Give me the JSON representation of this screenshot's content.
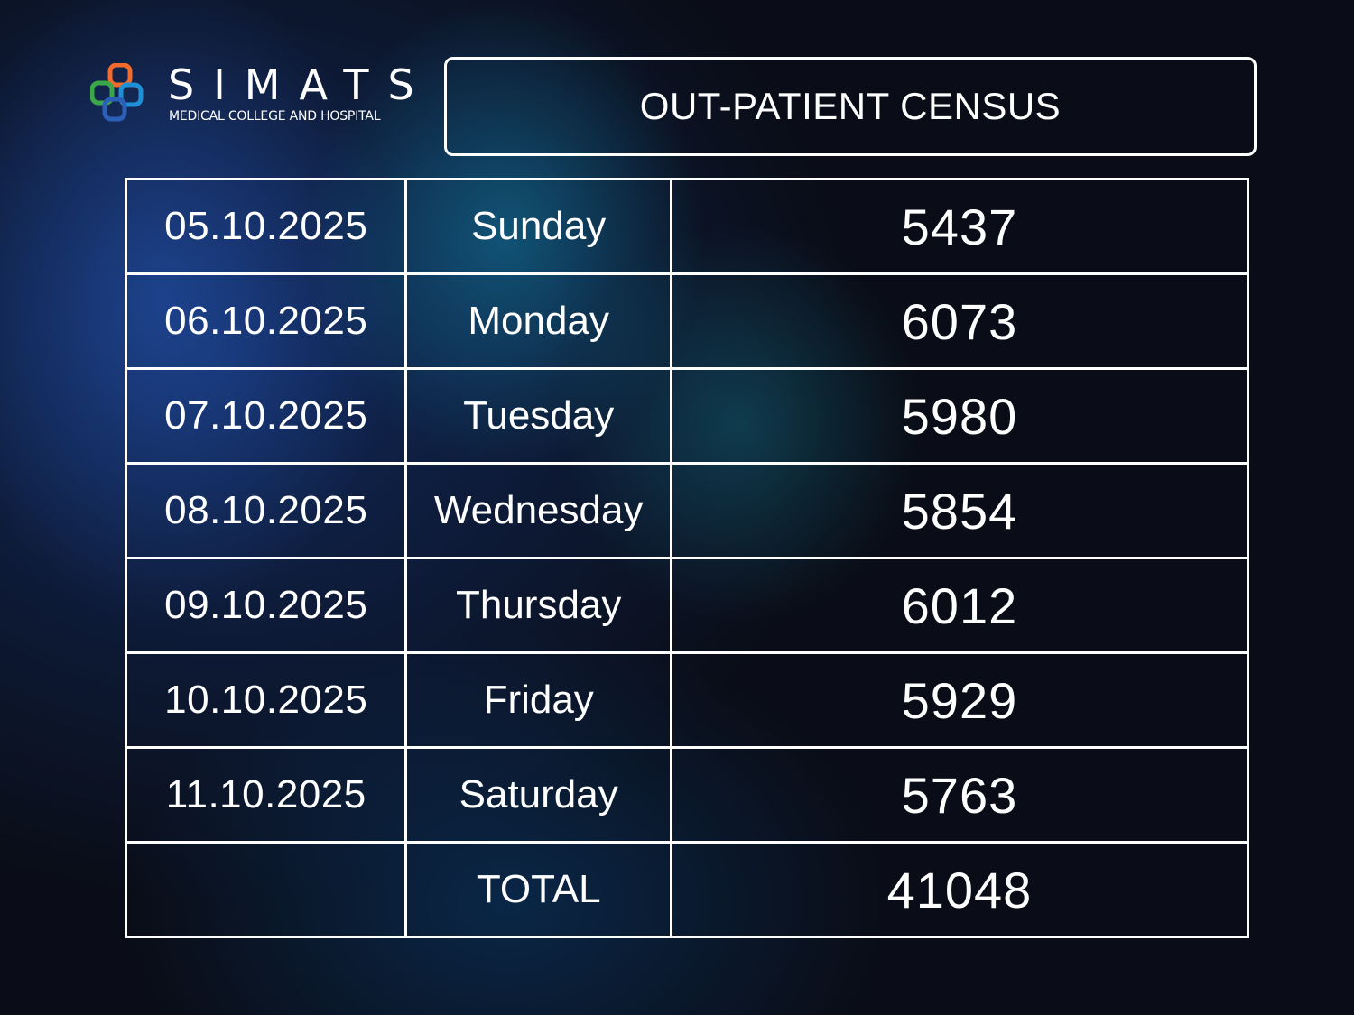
{
  "brand": {
    "name": "SIMATS",
    "subtitle": "MEDICAL COLLEGE AND HOSPITAL",
    "logo_colors": [
      "#f26b2a",
      "#3aa84a",
      "#1f8fd6",
      "#2c5fb8"
    ]
  },
  "title": "OUT-PATIENT CENSUS",
  "table": {
    "rows": [
      {
        "date": "05.10.2025",
        "day": "Sunday",
        "count": "5437"
      },
      {
        "date": "06.10.2025",
        "day": "Monday",
        "count": "6073"
      },
      {
        "date": "07.10.2025",
        "day": "Tuesday",
        "count": "5980"
      },
      {
        "date": "08.10.2025",
        "day": "Wednesday",
        "count": "5854"
      },
      {
        "date": "09.10.2025",
        "day": "Thursday",
        "count": "6012"
      },
      {
        "date": "10.10.2025",
        "day": "Friday",
        "count": "5929"
      },
      {
        "date": "11.10.2025",
        "day": "Saturday",
        "count": "5763"
      }
    ],
    "total": {
      "label": "TOTAL",
      "count": "41048"
    }
  },
  "colors": {
    "background": "#0a0d17",
    "text": "#ffffff",
    "border": "#ffffff"
  }
}
